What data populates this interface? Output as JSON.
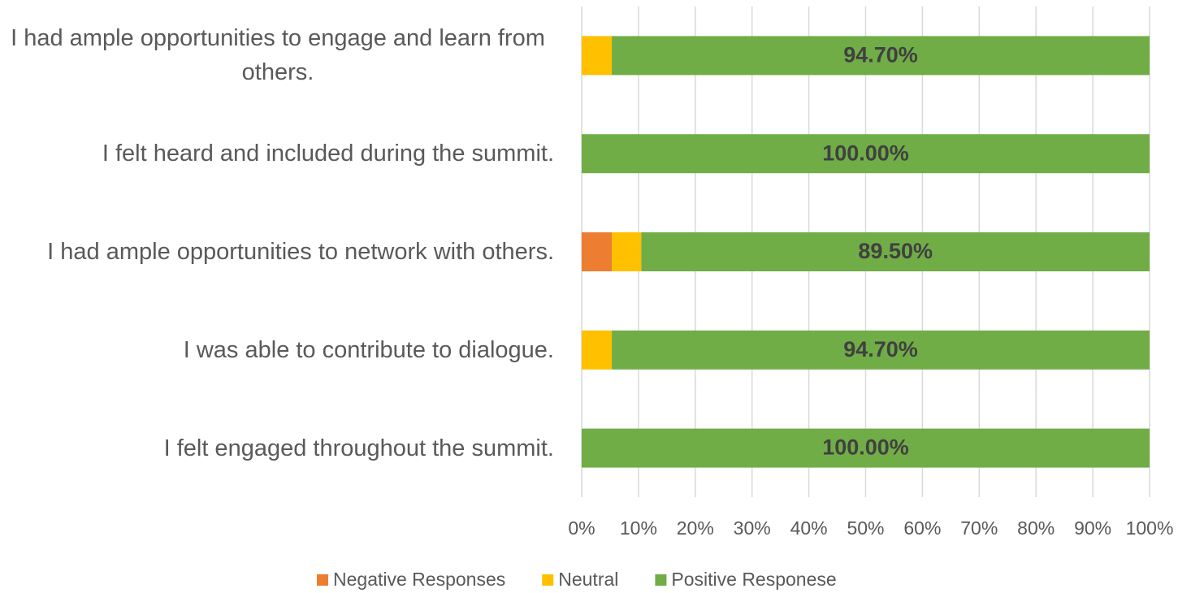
{
  "chart_data": {
    "type": "stacked_barh",
    "categories": [
      "I had ample opportunities to engage and learn from others.",
      "I felt heard and included during the summit.",
      "I had ample opportunities to network with others.",
      "I was able to contribute to dialogue.",
      "I felt engaged throughout the summit."
    ],
    "series": [
      {
        "name": "Negative Responses",
        "color": "#ed7d31",
        "values": [
          0,
          0,
          5.3,
          0,
          0
        ]
      },
      {
        "name": "Neutral",
        "color": "#ffc000",
        "values": [
          5.3,
          0,
          5.2,
          5.3,
          0
        ]
      },
      {
        "name": "Positive Responese",
        "color": "#70ad47",
        "values": [
          94.7,
          100,
          89.5,
          94.7,
          100
        ],
        "value_labels": [
          "94.70%",
          "100.00%",
          "89.50%",
          "94.70%",
          "100.00%"
        ]
      }
    ],
    "xlim": [
      0,
      100
    ],
    "xticks": [
      {
        "value": 0,
        "label": "0%"
      },
      {
        "value": 10,
        "label": "10%"
      },
      {
        "value": 20,
        "label": "20%"
      },
      {
        "value": 30,
        "label": "30%"
      },
      {
        "value": 40,
        "label": "40%"
      },
      {
        "value": 50,
        "label": "50%"
      },
      {
        "value": 60,
        "label": "60%"
      },
      {
        "value": 70,
        "label": "70%"
      },
      {
        "value": 80,
        "label": "80%"
      },
      {
        "value": 90,
        "label": "90%"
      },
      {
        "value": 100,
        "label": "100%"
      }
    ],
    "grid": true,
    "legend": "bottom"
  }
}
